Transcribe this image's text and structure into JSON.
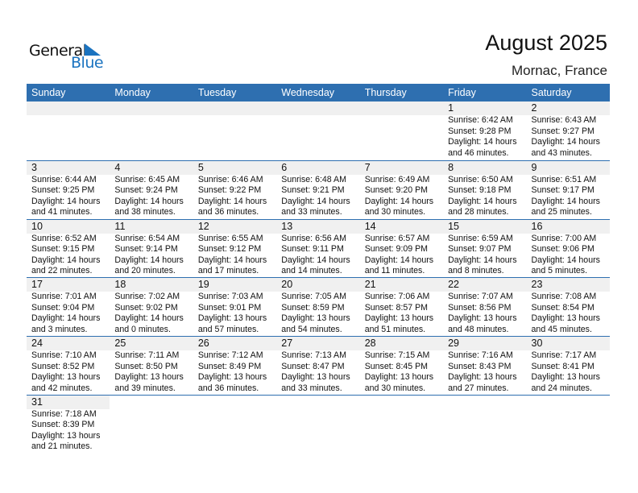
{
  "logo": {
    "text_general": "General",
    "text_blue": "Blue",
    "accent": "#1a73c0"
  },
  "header": {
    "title": "August 2025",
    "location": "Mornac, France"
  },
  "colors": {
    "header_bg": "#2e6fb0",
    "date_band": "#f0f0f0"
  },
  "weekdays": [
    "Sunday",
    "Monday",
    "Tuesday",
    "Wednesday",
    "Thursday",
    "Friday",
    "Saturday"
  ],
  "weeks": [
    [
      null,
      null,
      null,
      null,
      null,
      {
        "day": "1",
        "sunrise": "Sunrise: 6:42 AM",
        "sunset": "Sunset: 9:28 PM",
        "daylight1": "Daylight: 14 hours",
        "daylight2": "and 46 minutes."
      },
      {
        "day": "2",
        "sunrise": "Sunrise: 6:43 AM",
        "sunset": "Sunset: 9:27 PM",
        "daylight1": "Daylight: 14 hours",
        "daylight2": "and 43 minutes."
      }
    ],
    [
      {
        "day": "3",
        "sunrise": "Sunrise: 6:44 AM",
        "sunset": "Sunset: 9:25 PM",
        "daylight1": "Daylight: 14 hours",
        "daylight2": "and 41 minutes."
      },
      {
        "day": "4",
        "sunrise": "Sunrise: 6:45 AM",
        "sunset": "Sunset: 9:24 PM",
        "daylight1": "Daylight: 14 hours",
        "daylight2": "and 38 minutes."
      },
      {
        "day": "5",
        "sunrise": "Sunrise: 6:46 AM",
        "sunset": "Sunset: 9:22 PM",
        "daylight1": "Daylight: 14 hours",
        "daylight2": "and 36 minutes."
      },
      {
        "day": "6",
        "sunrise": "Sunrise: 6:48 AM",
        "sunset": "Sunset: 9:21 PM",
        "daylight1": "Daylight: 14 hours",
        "daylight2": "and 33 minutes."
      },
      {
        "day": "7",
        "sunrise": "Sunrise: 6:49 AM",
        "sunset": "Sunset: 9:20 PM",
        "daylight1": "Daylight: 14 hours",
        "daylight2": "and 30 minutes."
      },
      {
        "day": "8",
        "sunrise": "Sunrise: 6:50 AM",
        "sunset": "Sunset: 9:18 PM",
        "daylight1": "Daylight: 14 hours",
        "daylight2": "and 28 minutes."
      },
      {
        "day": "9",
        "sunrise": "Sunrise: 6:51 AM",
        "sunset": "Sunset: 9:17 PM",
        "daylight1": "Daylight: 14 hours",
        "daylight2": "and 25 minutes."
      }
    ],
    [
      {
        "day": "10",
        "sunrise": "Sunrise: 6:52 AM",
        "sunset": "Sunset: 9:15 PM",
        "daylight1": "Daylight: 14 hours",
        "daylight2": "and 22 minutes."
      },
      {
        "day": "11",
        "sunrise": "Sunrise: 6:54 AM",
        "sunset": "Sunset: 9:14 PM",
        "daylight1": "Daylight: 14 hours",
        "daylight2": "and 20 minutes."
      },
      {
        "day": "12",
        "sunrise": "Sunrise: 6:55 AM",
        "sunset": "Sunset: 9:12 PM",
        "daylight1": "Daylight: 14 hours",
        "daylight2": "and 17 minutes."
      },
      {
        "day": "13",
        "sunrise": "Sunrise: 6:56 AM",
        "sunset": "Sunset: 9:11 PM",
        "daylight1": "Daylight: 14 hours",
        "daylight2": "and 14 minutes."
      },
      {
        "day": "14",
        "sunrise": "Sunrise: 6:57 AM",
        "sunset": "Sunset: 9:09 PM",
        "daylight1": "Daylight: 14 hours",
        "daylight2": "and 11 minutes."
      },
      {
        "day": "15",
        "sunrise": "Sunrise: 6:59 AM",
        "sunset": "Sunset: 9:07 PM",
        "daylight1": "Daylight: 14 hours",
        "daylight2": "and 8 minutes."
      },
      {
        "day": "16",
        "sunrise": "Sunrise: 7:00 AM",
        "sunset": "Sunset: 9:06 PM",
        "daylight1": "Daylight: 14 hours",
        "daylight2": "and 5 minutes."
      }
    ],
    [
      {
        "day": "17",
        "sunrise": "Sunrise: 7:01 AM",
        "sunset": "Sunset: 9:04 PM",
        "daylight1": "Daylight: 14 hours",
        "daylight2": "and 3 minutes."
      },
      {
        "day": "18",
        "sunrise": "Sunrise: 7:02 AM",
        "sunset": "Sunset: 9:02 PM",
        "daylight1": "Daylight: 14 hours",
        "daylight2": "and 0 minutes."
      },
      {
        "day": "19",
        "sunrise": "Sunrise: 7:03 AM",
        "sunset": "Sunset: 9:01 PM",
        "daylight1": "Daylight: 13 hours",
        "daylight2": "and 57 minutes."
      },
      {
        "day": "20",
        "sunrise": "Sunrise: 7:05 AM",
        "sunset": "Sunset: 8:59 PM",
        "daylight1": "Daylight: 13 hours",
        "daylight2": "and 54 minutes."
      },
      {
        "day": "21",
        "sunrise": "Sunrise: 7:06 AM",
        "sunset": "Sunset: 8:57 PM",
        "daylight1": "Daylight: 13 hours",
        "daylight2": "and 51 minutes."
      },
      {
        "day": "22",
        "sunrise": "Sunrise: 7:07 AM",
        "sunset": "Sunset: 8:56 PM",
        "daylight1": "Daylight: 13 hours",
        "daylight2": "and 48 minutes."
      },
      {
        "day": "23",
        "sunrise": "Sunrise: 7:08 AM",
        "sunset": "Sunset: 8:54 PM",
        "daylight1": "Daylight: 13 hours",
        "daylight2": "and 45 minutes."
      }
    ],
    [
      {
        "day": "24",
        "sunrise": "Sunrise: 7:10 AM",
        "sunset": "Sunset: 8:52 PM",
        "daylight1": "Daylight: 13 hours",
        "daylight2": "and 42 minutes."
      },
      {
        "day": "25",
        "sunrise": "Sunrise: 7:11 AM",
        "sunset": "Sunset: 8:50 PM",
        "daylight1": "Daylight: 13 hours",
        "daylight2": "and 39 minutes."
      },
      {
        "day": "26",
        "sunrise": "Sunrise: 7:12 AM",
        "sunset": "Sunset: 8:49 PM",
        "daylight1": "Daylight: 13 hours",
        "daylight2": "and 36 minutes."
      },
      {
        "day": "27",
        "sunrise": "Sunrise: 7:13 AM",
        "sunset": "Sunset: 8:47 PM",
        "daylight1": "Daylight: 13 hours",
        "daylight2": "and 33 minutes."
      },
      {
        "day": "28",
        "sunrise": "Sunrise: 7:15 AM",
        "sunset": "Sunset: 8:45 PM",
        "daylight1": "Daylight: 13 hours",
        "daylight2": "and 30 minutes."
      },
      {
        "day": "29",
        "sunrise": "Sunrise: 7:16 AM",
        "sunset": "Sunset: 8:43 PM",
        "daylight1": "Daylight: 13 hours",
        "daylight2": "and 27 minutes."
      },
      {
        "day": "30",
        "sunrise": "Sunrise: 7:17 AM",
        "sunset": "Sunset: 8:41 PM",
        "daylight1": "Daylight: 13 hours",
        "daylight2": "and 24 minutes."
      }
    ],
    [
      {
        "day": "31",
        "sunrise": "Sunrise: 7:18 AM",
        "sunset": "Sunset: 8:39 PM",
        "daylight1": "Daylight: 13 hours",
        "daylight2": "and 21 minutes."
      },
      null,
      null,
      null,
      null,
      null,
      null
    ]
  ]
}
